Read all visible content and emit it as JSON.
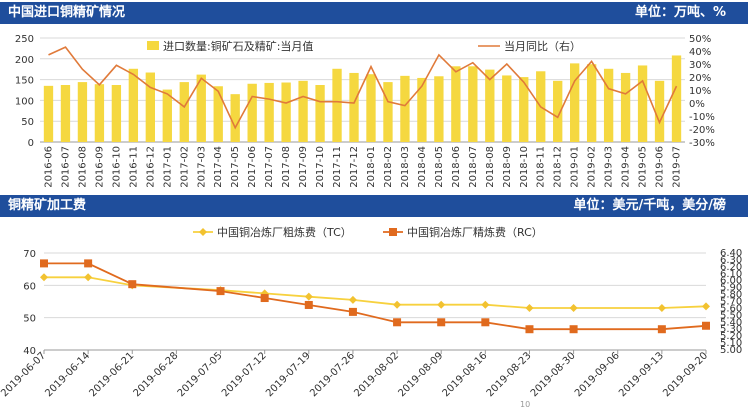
{
  "header1": {
    "title": "中国进口铜精矿情况",
    "unit": "单位：万吨、%"
  },
  "header2": {
    "title": "铜精矿加工费",
    "unit": "单位：美元/千吨，美分/磅"
  },
  "page_number": "10",
  "colors": {
    "header_bg": "#1f4e9c",
    "bar": "#f5d840",
    "line_orange": "#e07a3a",
    "tc_line": "#f7d13e",
    "tc_marker": "#f2c230",
    "rc_line": "#e06a1e",
    "grid": "#d9d9d9"
  },
  "chart_data": [
    {
      "type": "bar",
      "categories": [
        "2016-06",
        "2016-07",
        "2016-08",
        "2016-09",
        "2016-10",
        "2016-11",
        "2016-12",
        "2017-01",
        "2017-02",
        "2017-03",
        "2017-04",
        "2017-05",
        "2017-06",
        "2017-07",
        "2017-08",
        "2017-09",
        "2017-10",
        "2017-11",
        "2017-12",
        "2018-01",
        "2018-02",
        "2018-03",
        "2018-04",
        "2018-05",
        "2018-06",
        "2018-07",
        "2018-08",
        "2018-09",
        "2018-10",
        "2018-11",
        "2018-12",
        "2019-01",
        "2019-02",
        "2019-03",
        "2019-04",
        "2019-05",
        "2019-06",
        "2019-07"
      ],
      "series": [
        {
          "name": "进口数量:铜矿石及精矿:当月值",
          "axis": "left",
          "type": "bar",
          "values": [
            135,
            137,
            144,
            139,
            137,
            176,
            167,
            126,
            144,
            162,
            134,
            115,
            140,
            142,
            143,
            147,
            137,
            176,
            166,
            163,
            144,
            159,
            154,
            158,
            182,
            182,
            174,
            160,
            156,
            170,
            147,
            189,
            187,
            176,
            166,
            184,
            147,
            208
          ]
        },
        {
          "name": "当月同比（右）",
          "axis": "right",
          "type": "line",
          "values": [
            37,
            43,
            26,
            14,
            29,
            22,
            12,
            7,
            -3,
            19,
            9,
            -19,
            5,
            3,
            0,
            5,
            1,
            1,
            0,
            28,
            1,
            -2,
            13,
            37,
            24,
            31,
            18,
            30,
            16,
            -3,
            -11,
            17,
            32,
            11,
            7,
            17,
            -15,
            13
          ]
        }
      ],
      "ylim": [
        0,
        250
      ],
      "yticks": [
        0,
        50,
        100,
        150,
        200,
        250
      ],
      "y2lim": [
        -30,
        50
      ],
      "y2ticks": [
        "50%",
        "40%",
        "30%",
        "20%",
        "10%",
        "0%",
        "-10%",
        "-20%",
        "-30%"
      ],
      "legend_position": "top"
    },
    {
      "type": "line",
      "categories": [
        "2019-06-07",
        "2019-06-14",
        "2019-06-21",
        "2019-06-28",
        "2019-07-05",
        "2019-07-12",
        "2019-07-19",
        "2019-07-26",
        "2019-08-02",
        "2019-08-09",
        "2019-08-16",
        "2019-08-23",
        "2019-08-30",
        "2019-09-06",
        "2019-09-13",
        "2019-09-20"
      ],
      "series": [
        {
          "name": "中国铜冶炼厂粗炼费（TC）",
          "axis": "left",
          "markers": [
            true,
            true,
            true,
            false,
            true,
            true,
            true,
            true,
            true,
            true,
            true,
            true,
            true,
            false,
            true,
            true
          ],
          "values": [
            62.5,
            62.5,
            60.0,
            null,
            58.5,
            57.5,
            56.5,
            55.5,
            54.0,
            54.0,
            54.0,
            53.0,
            53.0,
            null,
            53.0,
            53.5
          ]
        },
        {
          "name": "中国铜冶炼厂精炼费（RC）",
          "axis": "right",
          "markers": [
            true,
            true,
            true,
            false,
            true,
            true,
            true,
            true,
            true,
            true,
            true,
            true,
            true,
            false,
            true,
            true
          ],
          "values": [
            6.25,
            6.25,
            5.95,
            null,
            5.85,
            5.75,
            5.65,
            5.55,
            5.4,
            5.4,
            5.4,
            5.3,
            5.3,
            null,
            5.3,
            5.35
          ]
        }
      ],
      "ylim": [
        40,
        70
      ],
      "yticks": [
        40,
        50,
        60,
        70
      ],
      "y2lim": [
        5.0,
        6.4
      ],
      "y2ticks": [
        "5.00",
        "5.10",
        "5.20",
        "5.30",
        "5.40",
        "5.50",
        "5.60",
        "5.70",
        "5.80",
        "5.90",
        "6.00",
        "6.10",
        "6.20",
        "6.30",
        "6.40"
      ],
      "legend_position": "top"
    }
  ]
}
